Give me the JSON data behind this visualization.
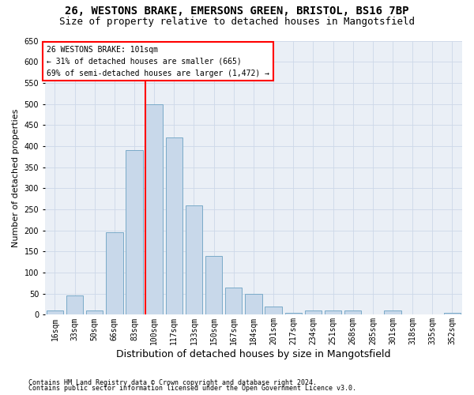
{
  "title_line1": "26, WESTONS BRAKE, EMERSONS GREEN, BRISTOL, BS16 7BP",
  "title_line2": "Size of property relative to detached houses in Mangotsfield",
  "xlabel": "Distribution of detached houses by size in Mangotsfield",
  "ylabel": "Number of detached properties",
  "footnote1": "Contains HM Land Registry data © Crown copyright and database right 2024.",
  "footnote2": "Contains public sector information licensed under the Open Government Licence v3.0.",
  "annotation_line1": "26 WESTONS BRAKE: 101sqm",
  "annotation_line2": "← 31% of detached houses are smaller (665)",
  "annotation_line3": "69% of semi-detached houses are larger (1,472) →",
  "bar_color": "#c8d8ea",
  "bar_edge_color": "#7aaac8",
  "vline_color": "red",
  "vline_x_index": 5,
  "categories": [
    "16sqm",
    "33sqm",
    "50sqm",
    "66sqm",
    "83sqm",
    "100sqm",
    "117sqm",
    "133sqm",
    "150sqm",
    "167sqm",
    "184sqm",
    "201sqm",
    "217sqm",
    "234sqm",
    "251sqm",
    "268sqm",
    "285sqm",
    "301sqm",
    "318sqm",
    "335sqm",
    "352sqm"
  ],
  "bar_heights": [
    10,
    45,
    10,
    195,
    390,
    500,
    420,
    260,
    140,
    65,
    50,
    20,
    5,
    10,
    10,
    10,
    0,
    10,
    0,
    0,
    5
  ],
  "ylim": [
    0,
    650
  ],
  "yticks": [
    0,
    50,
    100,
    150,
    200,
    250,
    300,
    350,
    400,
    450,
    500,
    550,
    600,
    650
  ],
  "grid_color": "#cdd8e8",
  "bg_color": "#eaeff6",
  "title_fontsize": 10,
  "subtitle_fontsize": 9,
  "axis_label_fontsize": 8,
  "tick_fontsize": 7,
  "footnote_fontsize": 6
}
